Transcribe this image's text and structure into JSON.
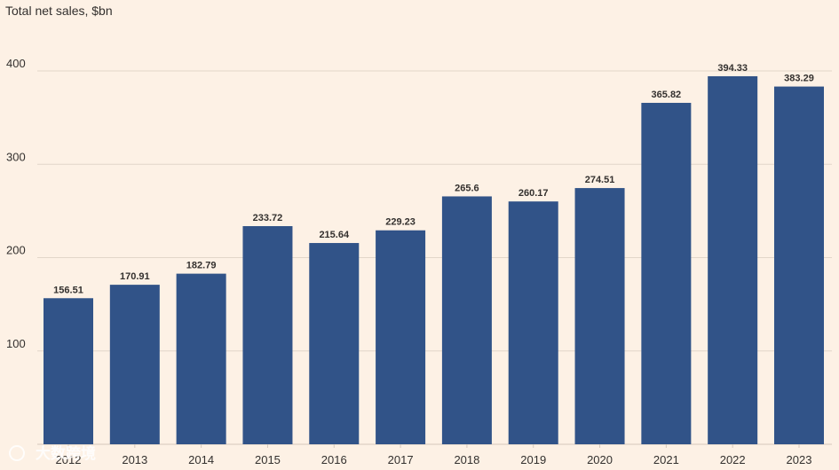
{
  "chart_data": {
    "type": "bar",
    "title": "Total net sales, $bn",
    "xlabel": "",
    "ylabel": "",
    "categories": [
      "2012",
      "2013",
      "2014",
      "2015",
      "2016",
      "2017",
      "2018",
      "2019",
      "2020",
      "2021",
      "2022",
      "2023"
    ],
    "values": [
      156.51,
      170.91,
      182.79,
      233.72,
      215.64,
      229.23,
      265.6,
      260.17,
      274.51,
      365.82,
      394.33,
      383.29
    ],
    "value_labels": [
      "156.51",
      "170.91",
      "182.79",
      "233.72",
      "215.64",
      "229.23",
      "265.6",
      "260.17",
      "274.51",
      "365.82",
      "394.33",
      "383.29"
    ],
    "ylim": [
      0,
      400
    ],
    "yticks": [
      100,
      200,
      300,
      400
    ],
    "grid": true,
    "bar_color": "#315388"
  },
  "colors": {
    "background": "#fdf1e5",
    "bar": "#315388",
    "text": "#33302e",
    "grid": "#e2d6c9"
  },
  "watermark": {
    "text": "大数跨境"
  }
}
